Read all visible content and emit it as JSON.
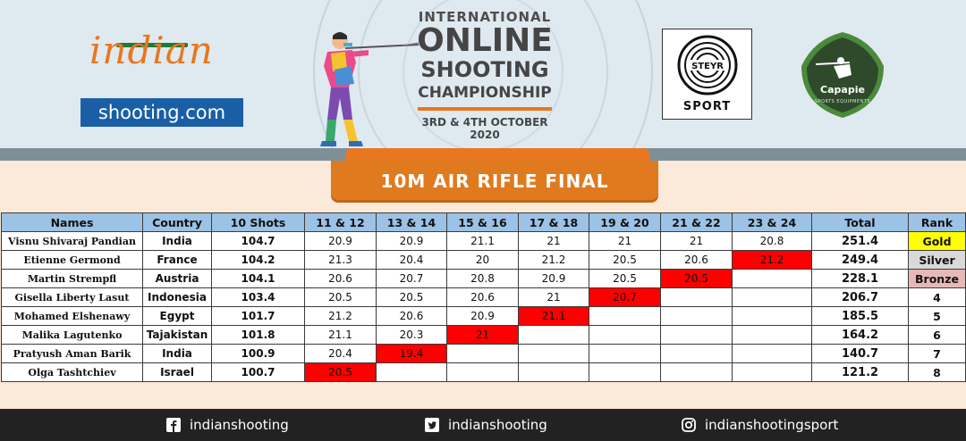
{
  "header": {
    "logo_indian": {
      "word": "indian",
      "domain": "shooting.com"
    },
    "championship": {
      "line1": "INTERNATIONAL",
      "line2": "ONLINE",
      "line3": "SHOOTING",
      "line4": "CHAMPIONSHIP",
      "dates": "3RD & 4TH OCTOBER 2020"
    },
    "steyr_logo": {
      "label": "SPORT"
    },
    "capapie_logo": {
      "label": "Capapie",
      "sub": "SPORTS EQUIPMENTS"
    }
  },
  "banner": {
    "title": "10M AIR RIFLE FINAL"
  },
  "table": {
    "headers": [
      "Names",
      "Country",
      "10 Shots",
      "11 & 12",
      "13 & 14",
      "15 & 16",
      "17 & 18",
      "19 & 20",
      "21 & 22",
      "23 & 24",
      "Total",
      "Rank"
    ],
    "rows": [
      {
        "name": "Visnu Shivaraj Pandian",
        "country": "India",
        "shots10": "104.7",
        "s": [
          "20.9",
          "20.9",
          "21.1",
          "21",
          "21",
          "21",
          "20.8"
        ],
        "total": "251.4",
        "rank": "Gold"
      },
      {
        "name": "Etienne Germond",
        "country": "France",
        "shots10": "104.2",
        "s": [
          "21.3",
          "20.4",
          "20",
          "21.2",
          "20.5",
          "20.6",
          "21.2"
        ],
        "total": "249.4",
        "rank": "Silver"
      },
      {
        "name": "Martin Strempfl",
        "country": "Austria",
        "shots10": "104.1",
        "s": [
          "20.6",
          "20.7",
          "20.8",
          "20.9",
          "20.5",
          "20.5",
          ""
        ],
        "total": "228.1",
        "rank": "Bronze"
      },
      {
        "name": "Gisella Liberty Lasut",
        "country": "Indonesia",
        "shots10": "103.4",
        "s": [
          "20.5",
          "20.5",
          "20.6",
          "21",
          "20.7",
          "",
          ""
        ],
        "total": "206.7",
        "rank": "4"
      },
      {
        "name": "Mohamed Elshenawy",
        "country": "Egypt",
        "shots10": "101.7",
        "s": [
          "21.2",
          "20.6",
          "20.9",
          "21.1",
          "",
          "",
          ""
        ],
        "total": "185.5",
        "rank": "5"
      },
      {
        "name": "Malika Lagutenko",
        "country": "Tajakistan",
        "shots10": "101.8",
        "s": [
          "21.1",
          "20.3",
          "21",
          "",
          "",
          "",
          ""
        ],
        "total": "164.2",
        "rank": "6"
      },
      {
        "name": "Pratyush Aman Barik",
        "country": "India",
        "shots10": "100.9",
        "s": [
          "20.4",
          "19.4",
          "",
          "",
          "",
          "",
          ""
        ],
        "total": "140.7",
        "rank": "7"
      },
      {
        "name": "Olga Tashtchiev",
        "country": "Israel",
        "shots10": "100.7",
        "s": [
          "20.5",
          "",
          "",
          "",
          "",
          "",
          ""
        ],
        "total": "121.2",
        "rank": "8"
      }
    ],
    "elimination_color": "#ff0000",
    "medal_colors": {
      "Gold": "#ffff00",
      "Silver": "#d9d9d9",
      "Bronze": "#e6b9b8"
    },
    "header_color": "#9cc2e5"
  },
  "footer": {
    "facebook": {
      "icon": "facebook-icon",
      "handle": "indianshooting"
    },
    "twitter": {
      "icon": "twitter-icon",
      "handle": "indianshooting"
    },
    "instagram": {
      "icon": "instagram-icon",
      "handle": "indianshootingsport"
    }
  }
}
